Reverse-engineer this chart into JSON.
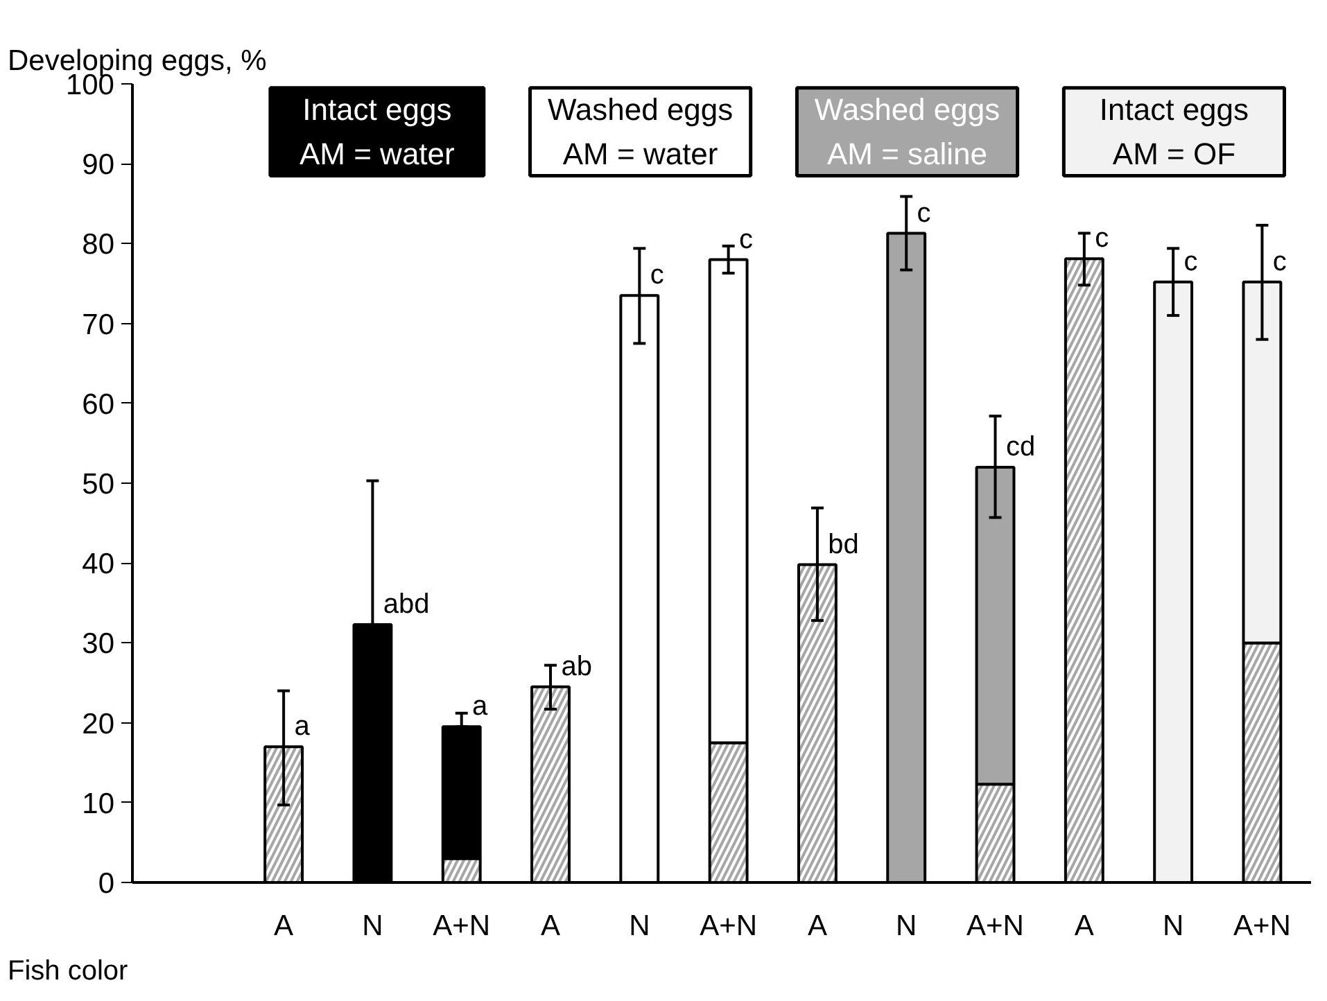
{
  "chart_data": {
    "type": "bar",
    "stacked": true,
    "ylabel": "Developing eggs, %",
    "xlabel": "Fish color",
    "categories": [
      "A",
      "N",
      "A+N",
      "A",
      "N",
      "A+N",
      "A",
      "N",
      "A+N",
      "A",
      "N",
      "A+N"
    ],
    "series": [
      {
        "color": "#a6a6a6",
        "values": [
          17,
          null,
          3,
          24.5,
          null,
          17.5,
          39.8,
          null,
          12.3,
          78.1,
          null,
          30
        ],
        "errors": [
          [
            9.7,
            24
          ],
          null,
          null,
          [
            21.7,
            27.2
          ],
          null,
          null,
          [
            32.8,
            46.9
          ],
          null,
          null,
          [
            74.8,
            81.3
          ],
          null,
          null
        ],
        "value_labels": [
          "a",
          null,
          null,
          "ab",
          null,
          null,
          "bd",
          null,
          null,
          "c",
          null,
          null
        ]
      },
      {
        "colors": [
          "#ffffff",
          "#000000",
          "#000000",
          "#ffffff",
          "#ffffff",
          "#ffffff",
          "#a6a6a6",
          "#a6a6a6",
          "#a6a6a6",
          "#f2f2f2",
          "#f2f2f2",
          "#f2f2f2"
        ],
        "values": [
          null,
          32.3,
          16.5,
          null,
          73.5,
          60.5,
          null,
          81.3,
          39.7,
          null,
          75.2,
          45.2
        ],
        "errors": [
          null,
          [
            32.3,
            50.3
          ],
          [
            19.5,
            21.2
          ],
          null,
          [
            67.5,
            79.4
          ],
          [
            76.3,
            79.7
          ],
          null,
          [
            76.7,
            85.9
          ],
          [
            45.7,
            58.4
          ],
          null,
          [
            71,
            79.4
          ],
          [
            68,
            82.3
          ]
        ],
        "value_labels": [
          null,
          "abd",
          "a",
          null,
          "c",
          "c",
          null,
          "c",
          "cd",
          null,
          "c",
          "c"
        ]
      }
    ],
    "annotations": [
      "Intact eggs\nAM = water",
      "Washed eggs\nAM = water",
      "Washed eggs\nAM = saline",
      "Intact eggs\nAM = OF"
    ],
    "ylim": [
      0,
      100
    ],
    "yticks": [
      0,
      10,
      20,
      30,
      40,
      50,
      60,
      70,
      80,
      90,
      100
    ],
    "grid": false
  }
}
